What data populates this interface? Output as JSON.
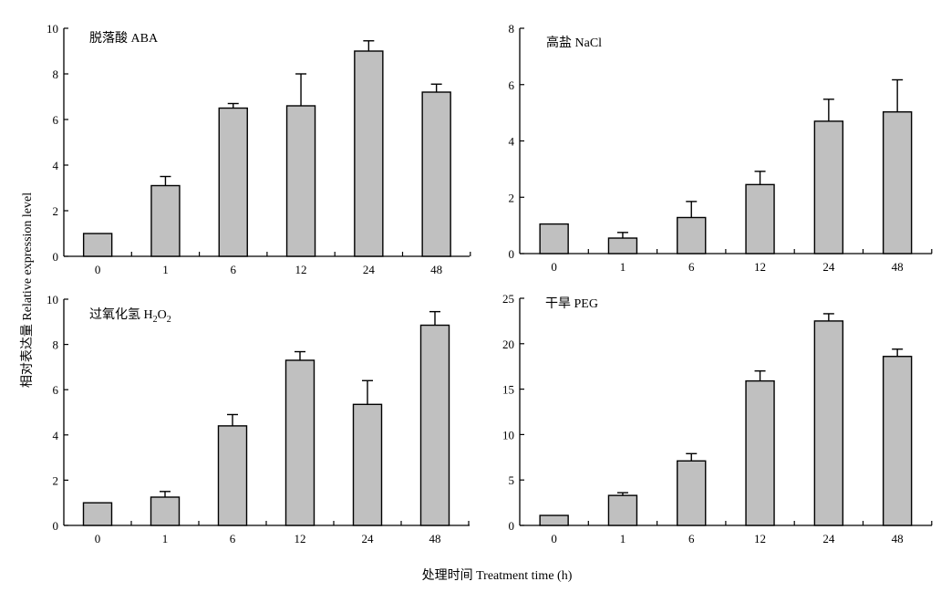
{
  "figure": {
    "ylabel": "相对表达量 Relative expression level",
    "xlabel": "处理时间 Treatment time (h)"
  },
  "colors": {
    "bar_fill": "#c0c0c0",
    "axis": "#000000"
  },
  "chart_data": [
    {
      "type": "bar",
      "title": "脱落酸 ABA",
      "categories": [
        "0",
        "1",
        "6",
        "12",
        "24",
        "48"
      ],
      "values": [
        1.0,
        3.1,
        6.5,
        6.6,
        9.0,
        7.2
      ],
      "error_upper": [
        1.0,
        3.5,
        6.7,
        8.0,
        9.45,
        7.55
      ],
      "ylim": [
        0,
        10
      ],
      "yticks": [
        0,
        2,
        4,
        6,
        8,
        10
      ],
      "grid": false
    },
    {
      "type": "bar",
      "title": "高盐 NaCl",
      "categories": [
        "0",
        "1",
        "6",
        "12",
        "24",
        "48"
      ],
      "values": [
        1.05,
        0.55,
        1.28,
        2.45,
        4.7,
        5.03
      ],
      "error_upper": [
        1.05,
        0.75,
        1.85,
        2.92,
        5.48,
        6.17
      ],
      "ylim": [
        0,
        8
      ],
      "yticks": [
        0,
        2,
        4,
        6,
        8
      ],
      "grid": false
    },
    {
      "type": "bar",
      "title": "过氧化氢 H₂O₂",
      "title_main": "过氧化氢 H",
      "title_sub1": "2",
      "title_mid": "O",
      "title_sub2": "2",
      "categories": [
        "0",
        "1",
        "6",
        "12",
        "24",
        "48"
      ],
      "values": [
        1.0,
        1.25,
        4.4,
        7.3,
        5.35,
        8.85
      ],
      "error_upper": [
        1.0,
        1.5,
        4.9,
        7.68,
        6.4,
        9.45
      ],
      "ylim": [
        0,
        10
      ],
      "yticks": [
        0,
        2,
        4,
        6,
        8,
        10
      ],
      "grid": false
    },
    {
      "type": "bar",
      "title": "干旱 PEG",
      "categories": [
        "0",
        "1",
        "6",
        "12",
        "24",
        "48"
      ],
      "values": [
        1.1,
        3.3,
        7.1,
        15.9,
        22.5,
        18.6
      ],
      "error_upper": [
        1.1,
        3.6,
        7.9,
        17.0,
        23.3,
        19.4
      ],
      "ylim": [
        0,
        25
      ],
      "yticks": [
        0,
        5,
        10,
        15,
        20,
        25
      ],
      "grid": false
    }
  ]
}
